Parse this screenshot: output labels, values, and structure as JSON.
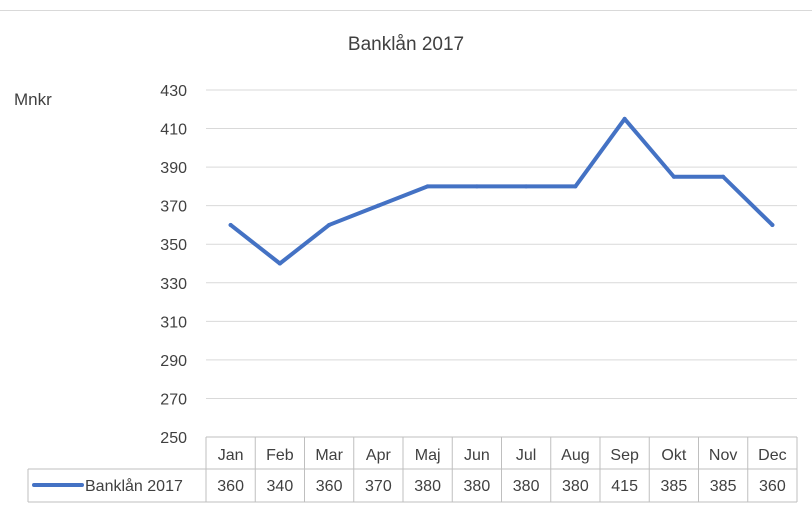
{
  "chart_data": {
    "type": "line",
    "title": "Banklån 2017",
    "ylabel": "Mnkr",
    "xlabel": "",
    "categories": [
      "Jan",
      "Feb",
      "Mar",
      "Apr",
      "Maj",
      "Jun",
      "Jul",
      "Aug",
      "Sep",
      "Okt",
      "Nov",
      "Dec"
    ],
    "series": [
      {
        "name": "Banklån 2017",
        "values": [
          360,
          340,
          360,
          370,
          380,
          380,
          380,
          380,
          415,
          385,
          385,
          360
        ],
        "color": "#4472c4"
      }
    ],
    "ylim": [
      250,
      430
    ],
    "yticks": [
      250,
      270,
      290,
      310,
      330,
      350,
      370,
      390,
      410,
      430
    ],
    "grid": true,
    "legend": "data-table-left",
    "data_table": true
  }
}
